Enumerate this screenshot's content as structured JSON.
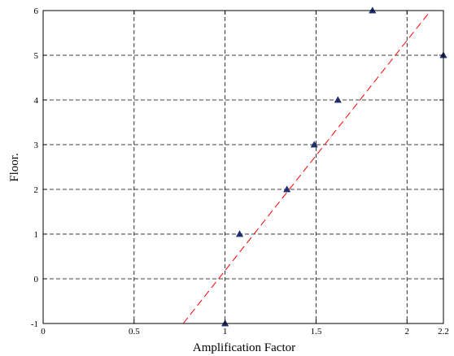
{
  "chart_data": {
    "type": "scatter",
    "title": "",
    "xlabel": "Amplification Factor",
    "ylabel": "Floor.",
    "xlim": [
      0,
      2.2
    ],
    "ylim": [
      -1,
      6
    ],
    "xticks": [
      0,
      0.5,
      1,
      1.5,
      2,
      2.2
    ],
    "xtick_labels": [
      "0",
      "0.5",
      "1",
      "1.5",
      "2",
      "2.2"
    ],
    "yticks": [
      -1,
      0,
      1,
      2,
      3,
      4,
      5,
      6
    ],
    "ytick_labels": [
      "-1",
      "0",
      "1",
      "2",
      "3",
      "4",
      "5",
      "6"
    ],
    "grid": true,
    "series": [
      {
        "kind": "points",
        "marker": "triangle",
        "color": "#1f2f6e",
        "x": [
          1.0,
          1.08,
          1.34,
          1.49,
          1.62,
          1.81,
          2.2
        ],
        "y": [
          -1,
          1,
          2,
          3,
          4,
          6,
          5
        ]
      },
      {
        "kind": "fit-line",
        "style": "dashed",
        "color": "#ff0000",
        "x": [
          0.77,
          2.13
        ],
        "y": [
          -1,
          6
        ]
      }
    ]
  }
}
